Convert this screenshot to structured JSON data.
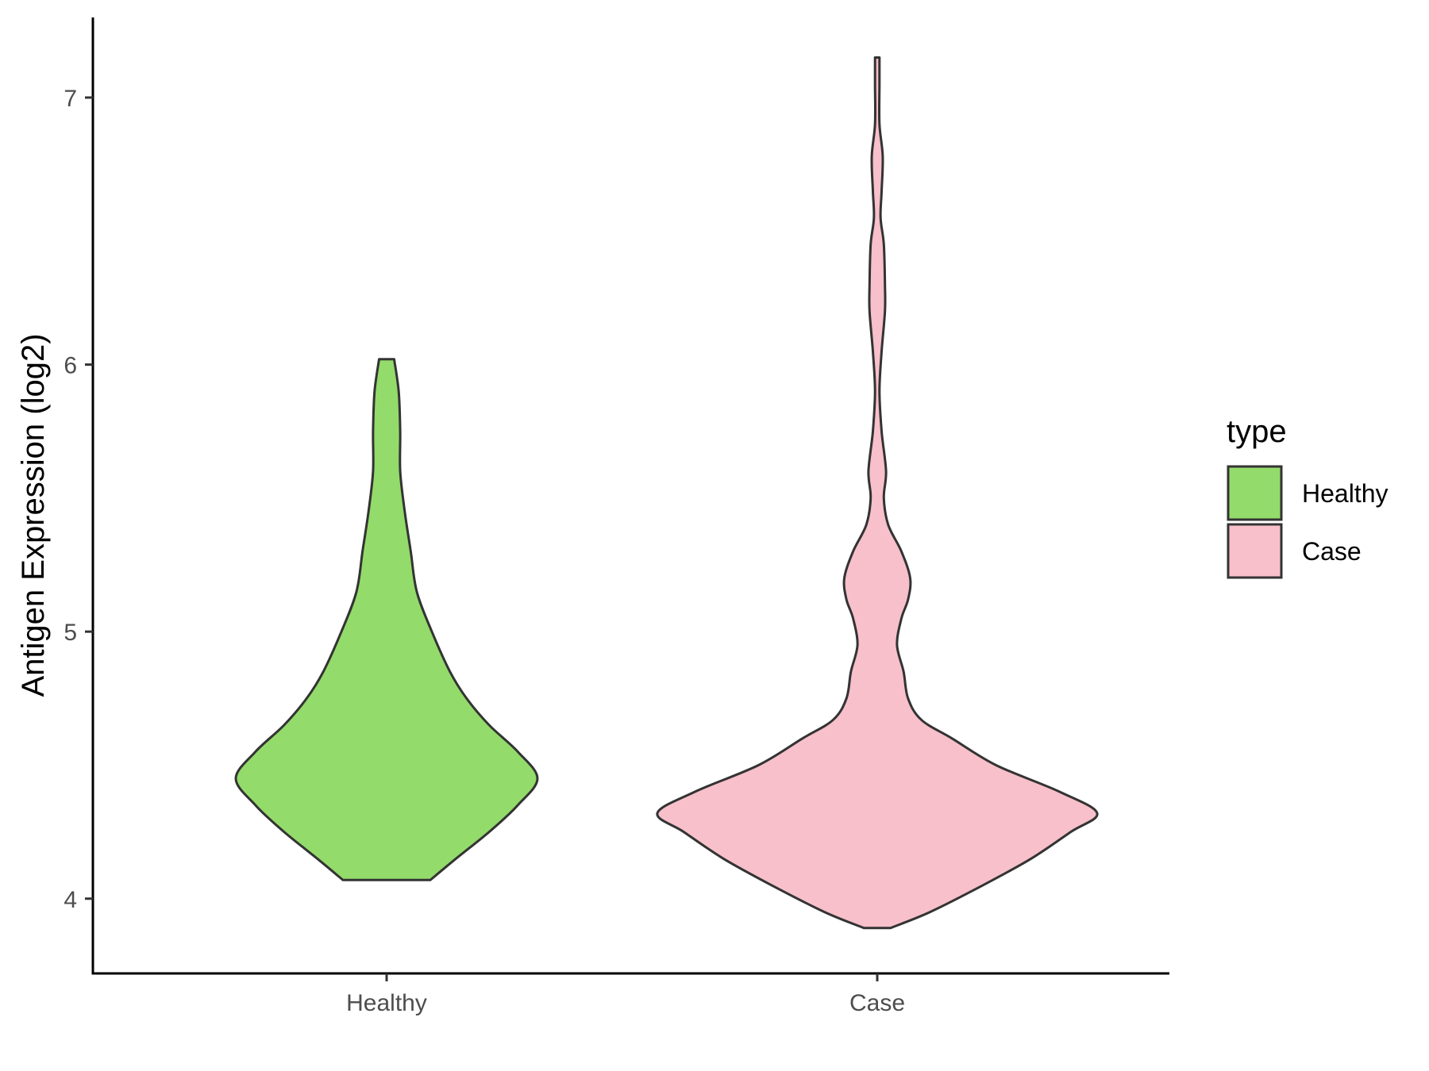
{
  "chart_data": {
    "type": "violin",
    "categories": [
      "Healthy",
      "Case"
    ],
    "ylabel": "Antigen Expression (log2)",
    "xlabel": "",
    "ylim": [
      3.72,
      7.3
    ],
    "yticks": [
      4,
      5,
      6,
      7
    ],
    "ytick_labels": [
      "4",
      "5",
      "6",
      "7"
    ],
    "grid": false,
    "legend": {
      "title": "type",
      "position": "right",
      "entries": [
        {
          "label": "Healthy",
          "color": "#93DB6A"
        },
        {
          "label": "Case",
          "color": "#F7C0CB"
        }
      ]
    },
    "series": [
      {
        "name": "Healthy",
        "color": "#93DB6A",
        "min": 4.07,
        "max": 6.02,
        "density": [
          [
            4.07,
            0.29
          ],
          [
            4.15,
            0.46
          ],
          [
            4.25,
            0.68
          ],
          [
            4.35,
            0.87
          ],
          [
            4.45,
            1.0
          ],
          [
            4.55,
            0.87
          ],
          [
            4.65,
            0.68
          ],
          [
            4.75,
            0.53
          ],
          [
            4.85,
            0.42
          ],
          [
            5.0,
            0.3
          ],
          [
            5.15,
            0.2
          ],
          [
            5.3,
            0.16
          ],
          [
            5.45,
            0.12
          ],
          [
            5.6,
            0.09
          ],
          [
            5.75,
            0.09
          ],
          [
            5.9,
            0.08
          ],
          [
            6.02,
            0.05
          ]
        ]
      },
      {
        "name": "Case",
        "color": "#F7C0CB",
        "min": 3.89,
        "max": 7.15,
        "density": [
          [
            3.89,
            0.06
          ],
          [
            3.95,
            0.24
          ],
          [
            4.05,
            0.48
          ],
          [
            4.15,
            0.7
          ],
          [
            4.25,
            0.88
          ],
          [
            4.32,
            1.0
          ],
          [
            4.4,
            0.83
          ],
          [
            4.5,
            0.54
          ],
          [
            4.6,
            0.34
          ],
          [
            4.67,
            0.2
          ],
          [
            4.75,
            0.14
          ],
          [
            4.85,
            0.12
          ],
          [
            4.95,
            0.09
          ],
          [
            5.05,
            0.11
          ],
          [
            5.12,
            0.14
          ],
          [
            5.2,
            0.15
          ],
          [
            5.3,
            0.11
          ],
          [
            5.4,
            0.05
          ],
          [
            5.5,
            0.03
          ],
          [
            5.6,
            0.04
          ],
          [
            5.75,
            0.02
          ],
          [
            5.9,
            0.01
          ],
          [
            6.05,
            0.02
          ],
          [
            6.2,
            0.035
          ],
          [
            6.3,
            0.035
          ],
          [
            6.45,
            0.03
          ],
          [
            6.55,
            0.015
          ],
          [
            6.65,
            0.02
          ],
          [
            6.78,
            0.025
          ],
          [
            6.9,
            0.01
          ],
          [
            7.05,
            0.01
          ],
          [
            7.15,
            0.01
          ]
        ]
      }
    ]
  }
}
